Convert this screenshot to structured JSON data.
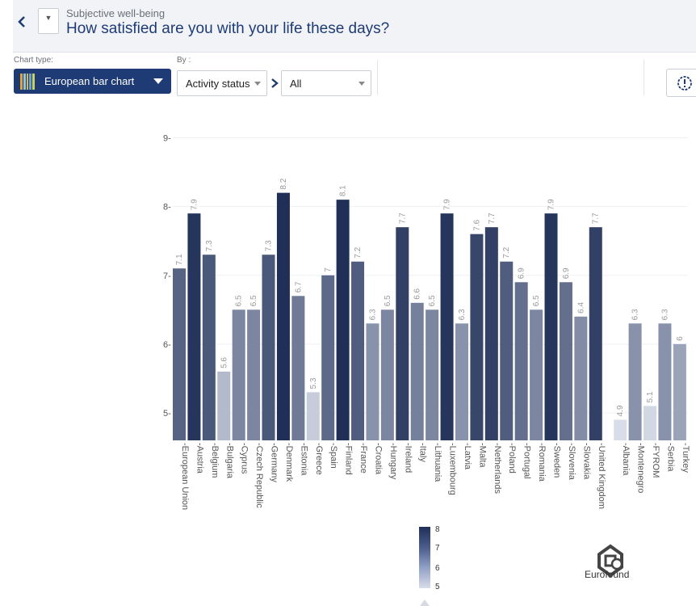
{
  "header": {
    "subtitle": "Subjective well-being",
    "title": "How satisfied are you with your life these days?"
  },
  "controls": {
    "chart_type_label": "Chart type:",
    "chart_type_value": "European bar chart",
    "by_label": "By :",
    "by_value": "Activity status",
    "filter_value": "All"
  },
  "logo_text": "Eurofound",
  "colors": {
    "header_bg": "#f1f3f7",
    "accent": "#1f3b75",
    "scale_high": "#1f2f57",
    "scale_low": "#d8dde9"
  },
  "legend": {
    "ticks": [
      "8",
      "7",
      "6",
      "5"
    ]
  },
  "chart_data": {
    "type": "bar",
    "ylim": [
      4.6,
      9.5
    ],
    "yticks": [
      {
        "v": 9,
        "label": "9-"
      },
      {
        "v": 8,
        "label": "8-"
      },
      {
        "v": 7,
        "label": "7-"
      },
      {
        "v": 6,
        "label": "6-"
      },
      {
        "v": 5,
        "label": "5-"
      }
    ],
    "categories": [
      "European Union",
      "Austria",
      "Belgium",
      "Bulgaria",
      "Cyprus",
      "Czech Republic",
      "Germany",
      "Denmark",
      "Estonia",
      "Greece",
      "Spain",
      "Finland",
      "France",
      "Croatia",
      "Hungary",
      "Ireland",
      "Italy",
      "Lithuania",
      "Luxembourg",
      "Latvia",
      "Malta",
      "Netherlands",
      "Poland",
      "Portugal",
      "Romania",
      "Sweden",
      "Slovenia",
      "Slovakia",
      "United Kingdom",
      "Albania",
      "Montenegro",
      "FYROM",
      "Serbia",
      "Turkey"
    ],
    "values": [
      7.1,
      7.9,
      7.3,
      5.6,
      6.5,
      6.5,
      7.3,
      8.2,
      6.7,
      5.3,
      7,
      8.1,
      7.2,
      6.3,
      6.5,
      7.7,
      6.6,
      6.5,
      7.9,
      6.3,
      7.6,
      7.7,
      7.2,
      6.9,
      6.5,
      7.9,
      6.9,
      6.4,
      7.7,
      4.9,
      6.3,
      5.1,
      6.3,
      6
    ],
    "data_labels": [
      "7.1",
      "7.9",
      "7.3",
      "5.6",
      "6.5",
      "6.5",
      "7.3",
      "8.2",
      "6.7",
      "5.3",
      "7",
      "8.1",
      "7.2",
      "6.3",
      "6.5",
      "7.7",
      "6.6",
      "6.5",
      "7.9",
      "6.3",
      "7.6",
      "7.7",
      "7.2",
      "6.9",
      "6.5",
      "7.9",
      "6.9",
      "6.4",
      "7.7",
      "4.9",
      "6.3",
      "5.1",
      "6.3",
      "6"
    ],
    "color_scale": [
      5,
      8
    ]
  }
}
